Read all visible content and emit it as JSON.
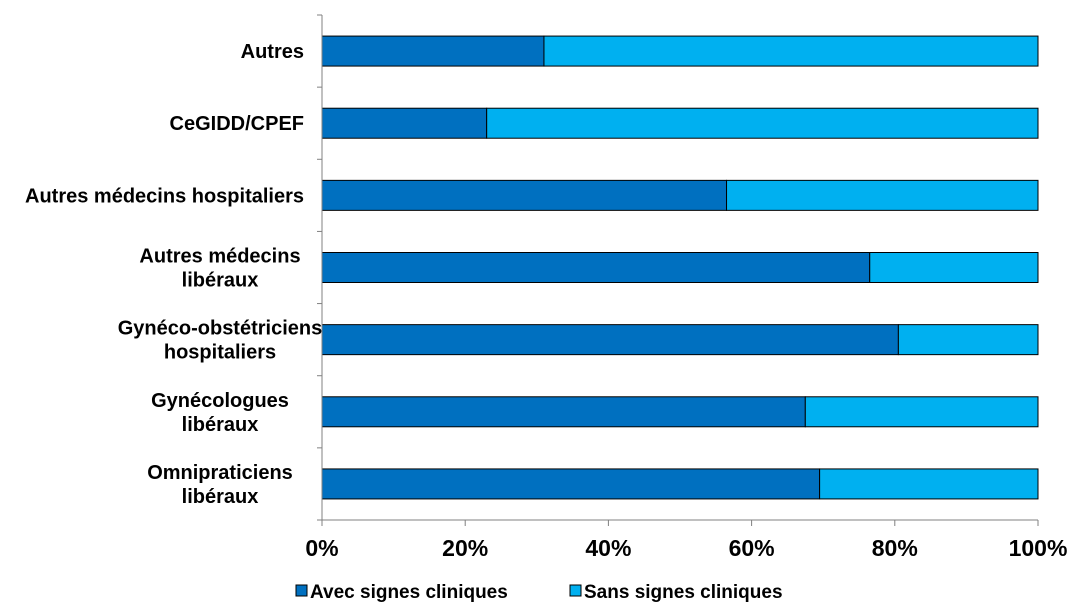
{
  "chart_data": {
    "type": "bar",
    "orientation": "horizontal",
    "stacked": "percent",
    "categories": [
      [
        "Autres"
      ],
      [
        "CeGIDD/CPEF"
      ],
      [
        "Autres médecins hospitaliers"
      ],
      [
        "Autres médecins",
        "libéraux"
      ],
      [
        "Gynéco-obstétriciens",
        "hospitaliers"
      ],
      [
        "Gynécologues",
        "libéraux"
      ],
      [
        "Omnipraticiens",
        "libéraux"
      ]
    ],
    "series": [
      {
        "name": "Avec signes cliniques",
        "color": "#0070c0",
        "values": [
          31,
          23,
          56.5,
          76.5,
          80.5,
          67.5,
          69.5
        ]
      },
      {
        "name": "Sans signes cliniques",
        "color": "#00b0f0",
        "values": [
          69,
          77,
          43.5,
          23.5,
          19.5,
          32.5,
          30.5
        ]
      }
    ],
    "xlim": [
      0,
      100
    ],
    "xticks": [
      "0%",
      "20%",
      "40%",
      "60%",
      "80%",
      "100%"
    ],
    "grid": false,
    "legend": "bottom"
  }
}
